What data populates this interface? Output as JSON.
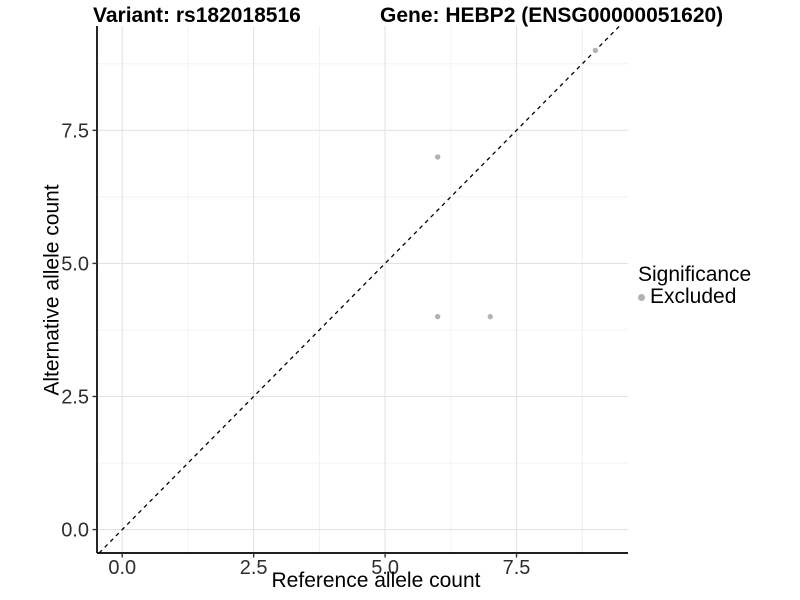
{
  "title": {
    "variant": "Variant: rs182018516",
    "gene": "Gene: HEBP2 (ENSG00000051620)"
  },
  "axes": {
    "x_label": "Reference allele count",
    "y_label": "Alternative allele count",
    "x_tick_labels": [
      "0.0",
      "2.5",
      "5.0",
      "7.5"
    ],
    "y_tick_labels": [
      "0.0",
      "2.5",
      "5.0",
      "7.5"
    ]
  },
  "legend": {
    "title": "Significance",
    "items": [
      {
        "label": "Excluded",
        "color": "#b2b2b2"
      }
    ]
  },
  "colors": {
    "grid_major": "#e3e3e3",
    "grid_minor": "#f0f0f0",
    "axis_line": "#000000",
    "tick_label": "#2e2e2e",
    "point": "#b2b2b2",
    "reference_line": "#000000"
  },
  "chart_data": {
    "type": "scatter",
    "title_left": "Variant: rs182018516",
    "title_right": "Gene: HEBP2 (ENSG00000051620)",
    "xlabel": "Reference allele count",
    "ylabel": "Alternative allele count",
    "xlim": [
      -0.48,
      9.62
    ],
    "ylim": [
      -0.44,
      9.46
    ],
    "x_major_ticks": [
      0.0,
      2.5,
      5.0,
      7.5
    ],
    "y_major_ticks": [
      0.0,
      2.5,
      5.0,
      7.5
    ],
    "x_minor_ticks": [
      1.25,
      3.75,
      6.25,
      8.75
    ],
    "y_minor_ticks": [
      1.25,
      3.75,
      6.25,
      8.75
    ],
    "grid": "major+minor",
    "legend_position": "right",
    "series": [
      {
        "name": "Excluded",
        "color": "#b2b2b2",
        "points": [
          [
            6,
            7
          ],
          [
            6,
            4
          ],
          [
            7,
            4
          ],
          [
            9,
            9
          ]
        ]
      }
    ],
    "reference_line": {
      "kind": "identity",
      "dashed": true,
      "color": "#000000"
    }
  }
}
